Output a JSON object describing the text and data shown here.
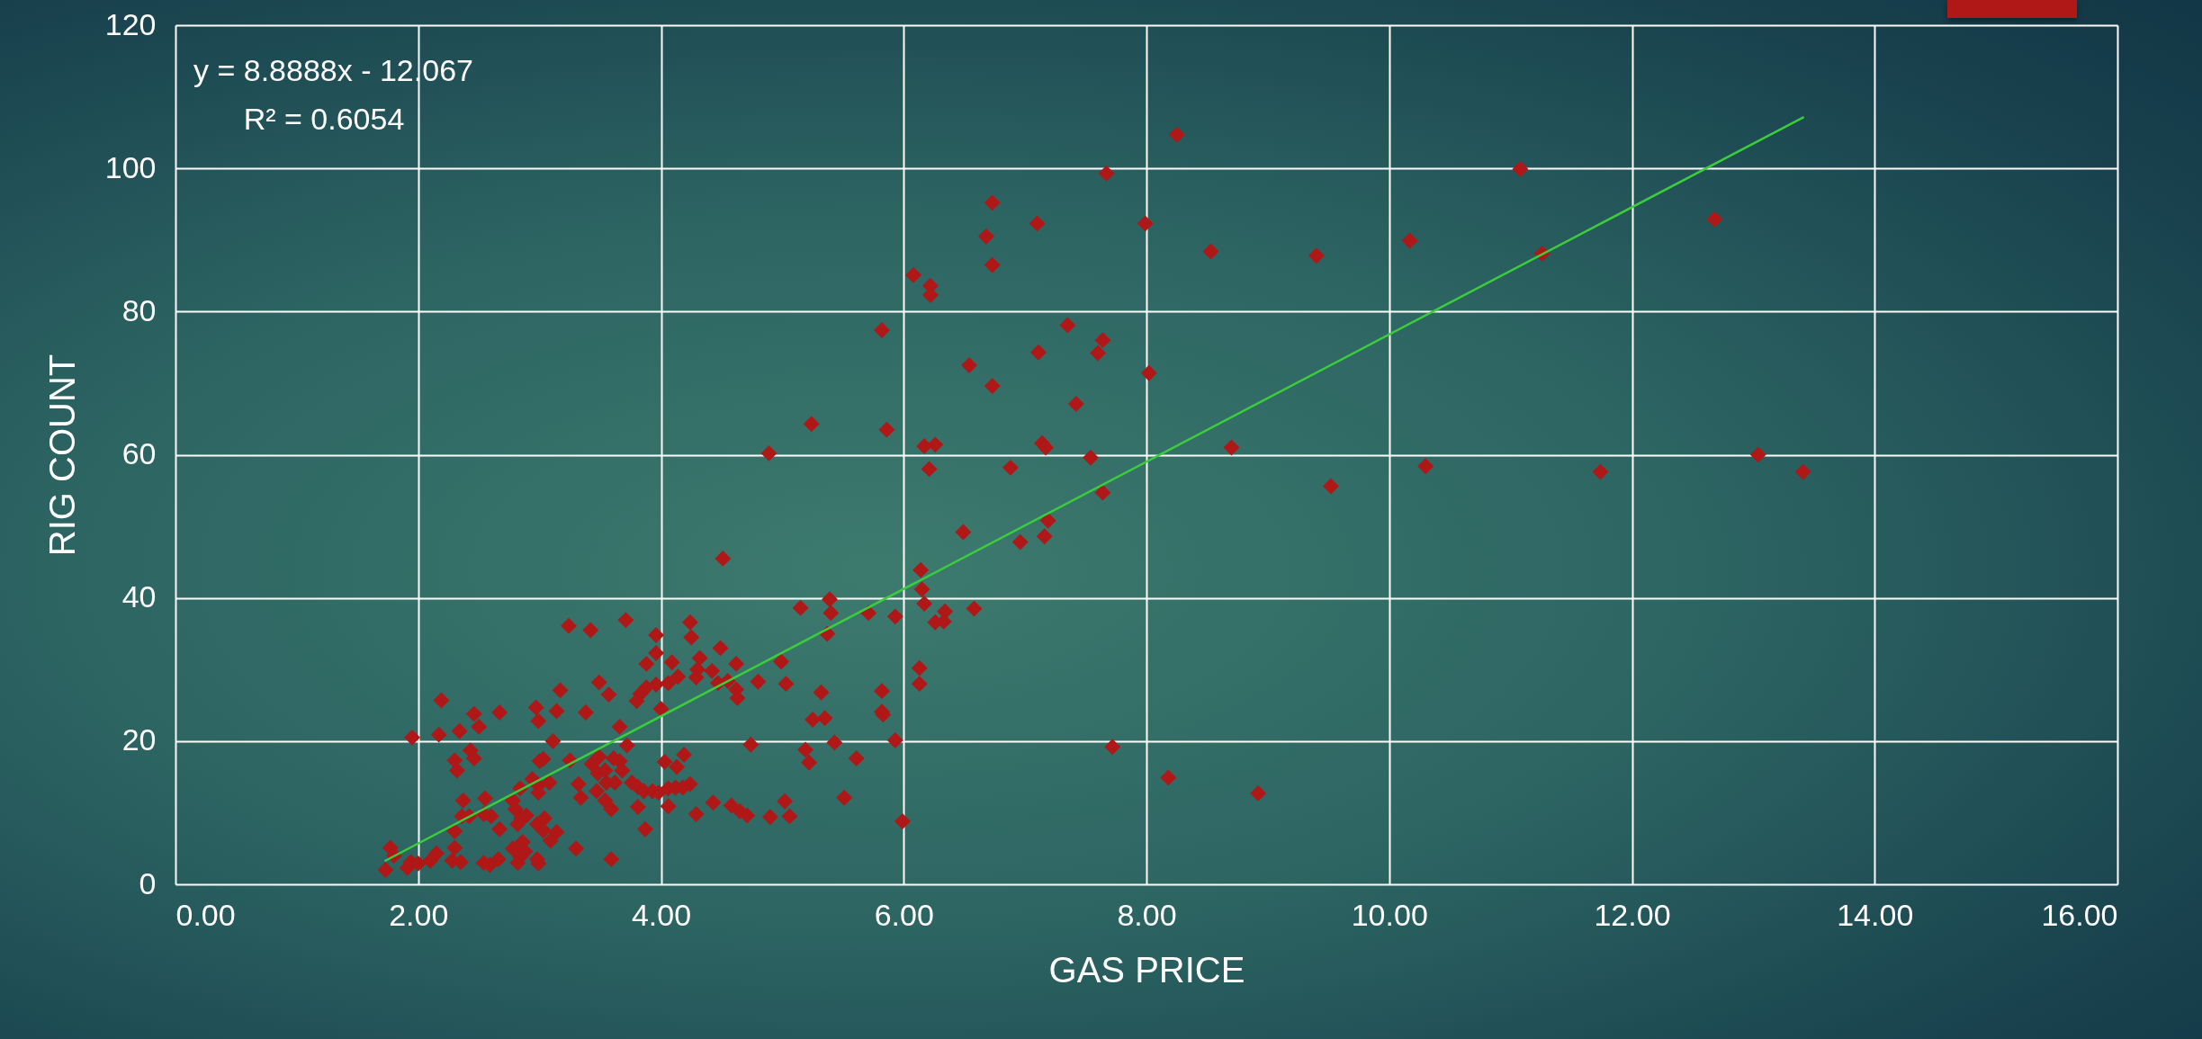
{
  "chart_data": {
    "type": "scatter",
    "xlabel": "GAS PRICE",
    "ylabel": "RIG COUNT",
    "annotations": [
      "y = 8.8888x - 12.067",
      "R² = 0.6054"
    ],
    "xlim": [
      0,
      16
    ],
    "ylim": [
      0,
      120
    ],
    "xticks": [
      {
        "value": 0,
        "label": "0.00"
      },
      {
        "value": 2,
        "label": "2.00"
      },
      {
        "value": 4,
        "label": "4.00"
      },
      {
        "value": 6,
        "label": "6.00"
      },
      {
        "value": 8,
        "label": "8.00"
      },
      {
        "value": 10,
        "label": "10.00"
      },
      {
        "value": 12,
        "label": "12.00"
      },
      {
        "value": 14,
        "label": "14.00"
      },
      {
        "value": 16,
        "label": "16.00"
      }
    ],
    "yticks": [
      0,
      20,
      40,
      60,
      80,
      100,
      120
    ],
    "grid": true,
    "marker": "diamond",
    "series": [
      {
        "color": "#b01717",
        "x": [
          1.73,
          1.77,
          1.8,
          1.95,
          1.91,
          1.94,
          2.0,
          2.1,
          2.15,
          2.19,
          2.17,
          2.34,
          2.3,
          2.32,
          2.37,
          2.36,
          2.3,
          2.3,
          2.28,
          2.35,
          2.46,
          2.5,
          2.67,
          2.55,
          2.42,
          2.54,
          2.6,
          2.67,
          2.43,
          2.46,
          2.54,
          2.59,
          2.66,
          2.84,
          2.78,
          2.8,
          2.85,
          2.82,
          2.89,
          2.78,
          2.86,
          2.88,
          2.84,
          2.82,
          2.94,
          2.99,
          2.99,
          2.98,
          3.04,
          3.03,
          3.14,
          3.09,
          2.98,
          2.99,
          2.97,
          2.99,
          3.14,
          3.17,
          3.11,
          3.0,
          3.03,
          3.08,
          3.25,
          3.3,
          3.38,
          3.49,
          3.57,
          3.71,
          3.43,
          3.49,
          3.48,
          3.54,
          3.61,
          3.66,
          3.68,
          3.55,
          3.62,
          3.66,
          3.72,
          3.32,
          3.34,
          3.47,
          3.54,
          3.59,
          3.59,
          3.76,
          3.81,
          3.86,
          3.93,
          3.98,
          3.81,
          3.87,
          3.96,
          3.96,
          3.88,
          3.83,
          3.8,
          4.0,
          3.96,
          3.88,
          3.24,
          3.42,
          5.15,
          5.39,
          5.4,
          5.71,
          5.93,
          5.37,
          6.15,
          6.17,
          6.34,
          6.26,
          6.33,
          6.58,
          6.13,
          6.13,
          5.82,
          5.82,
          5.83,
          5.93,
          5.32,
          5.25,
          5.35,
          5.43,
          5.19,
          5.22,
          5.61,
          5.51,
          5.99,
          4.74,
          4.99,
          5.03,
          4.8,
          5.02,
          5.06,
          4.9,
          4.71,
          4.65,
          4.58,
          4.43,
          4.29,
          4.24,
          4.25,
          4.49,
          4.32,
          4.62,
          4.09,
          4.3,
          4.42,
          4.29,
          4.14,
          4.47,
          4.55,
          4.62,
          4.63,
          4.06,
          4.19,
          4.13,
          4.03,
          4.24,
          4.18,
          4.12,
          4.06,
          4.06,
          4.51,
          4.89,
          5.24,
          6.14,
          6.49,
          6.08,
          6.22,
          6.22,
          5.82,
          5.86,
          6.17,
          6.26,
          6.21,
          6.54,
          6.68,
          6.73,
          6.73,
          6.73,
          6.88,
          7.1,
          7.11,
          7.35,
          7.64,
          7.6,
          7.42,
          7.14,
          7.17,
          7.54,
          7.64,
          7.19,
          6.96,
          7.16,
          7.72,
          8.18,
          8.92,
          7.67,
          7.99,
          8.02,
          8.25,
          8.53,
          8.7,
          9.4,
          9.52,
          10.17,
          10.3,
          11.08,
          11.26,
          11.74,
          12.68,
          13.04,
          13.41
        ],
        "values": [
          2.0,
          5.1,
          4.0,
          20.5,
          2.3,
          3.1,
          2.9,
          3.3,
          4.3,
          25.7,
          20.9,
          21.4,
          17.3,
          15.9,
          11.7,
          9.5,
          7.4,
          5.1,
          3.3,
          3.1,
          23.8,
          22.0,
          24.0,
          12.0,
          9.5,
          9.8,
          9.5,
          7.7,
          18.7,
          17.6,
          3.0,
          2.7,
          3.5,
          13.4,
          11.7,
          10.5,
          9.2,
          8.4,
          9.6,
          5.0,
          5.9,
          4.6,
          3.8,
          3.0,
          14.7,
          13.8,
          12.8,
          8.4,
          9.2,
          7.5,
          7.3,
          6.1,
          3.5,
          2.9,
          24.7,
          22.8,
          24.2,
          27.1,
          20.0,
          17.2,
          17.5,
          14.2,
          17.3,
          5.0,
          24.0,
          28.2,
          26.5,
          36.9,
          16.8,
          17.8,
          15.5,
          15.9,
          17.6,
          17.2,
          15.9,
          14.2,
          14.2,
          22.0,
          19.4,
          14.0,
          12.1,
          13.0,
          11.7,
          10.5,
          3.5,
          14.2,
          13.6,
          13.0,
          13.0,
          12.8,
          10.8,
          7.7,
          34.8,
          32.3,
          30.8,
          26.6,
          25.6,
          24.5,
          27.9,
          27.5,
          36.1,
          35.5,
          38.6,
          39.8,
          37.9,
          37.9,
          37.4,
          35.0,
          41.2,
          39.2,
          38.1,
          36.6,
          36.7,
          38.5,
          30.2,
          28.0,
          27.0,
          24.1,
          23.7,
          20.1,
          26.8,
          23.0,
          23.2,
          19.8,
          18.8,
          17.0,
          17.6,
          12.1,
          8.8,
          19.5,
          31.1,
          28.0,
          28.3,
          11.6,
          9.5,
          9.4,
          9.6,
          10.2,
          11.0,
          11.4,
          9.8,
          36.6,
          34.5,
          33.0,
          31.6,
          30.8,
          31.0,
          30.0,
          29.8,
          28.9,
          29.0,
          28.1,
          28.4,
          27.2,
          26.0,
          28.1,
          18.1,
          16.4,
          17.1,
          14.0,
          13.5,
          13.5,
          13.4,
          10.9,
          45.5,
          60.2,
          64.3,
          43.9,
          49.2,
          85.1,
          83.6,
          82.3,
          77.4,
          63.5,
          61.2,
          61.4,
          58.0,
          72.5,
          90.5,
          95.2,
          86.5,
          69.6,
          58.2,
          92.3,
          74.3,
          78.1,
          76.0,
          74.2,
          67.1,
          61.6,
          61.0,
          59.6,
          54.7,
          50.8,
          47.8,
          48.6,
          19.2,
          14.9,
          12.7,
          99.3,
          92.3,
          71.4,
          104.7,
          88.4,
          61.0,
          87.8,
          55.6,
          89.9,
          58.4,
          99.9,
          88.1,
          57.6,
          92.9,
          60.0,
          57.6
        ]
      },
      {
        "type": "line",
        "color": "#3ccc3c",
        "marker": "none",
        "x": [
          1.73,
          13.41
        ],
        "values": [
          3.3,
          107.1
        ]
      }
    ]
  }
}
